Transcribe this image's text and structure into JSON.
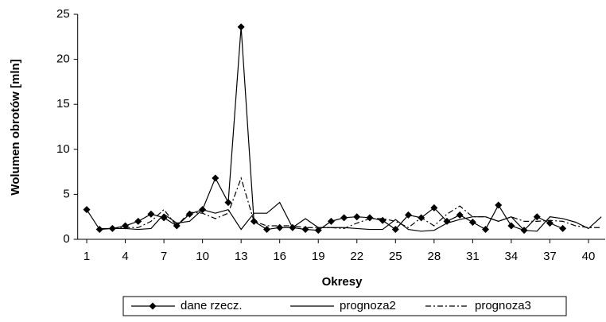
{
  "chart_data": {
    "type": "line",
    "x": [
      1,
      2,
      3,
      4,
      5,
      6,
      7,
      8,
      9,
      10,
      11,
      12,
      13,
      14,
      15,
      16,
      17,
      18,
      19,
      20,
      21,
      22,
      23,
      24,
      25,
      26,
      27,
      28,
      29,
      30,
      31,
      32,
      33,
      34,
      35,
      36,
      37,
      38,
      39,
      40,
      41
    ],
    "xlabel": "Okresy",
    "ylabel": "Wolumen obrotów [mln]",
    "xlim": [
      0.3,
      41.3
    ],
    "xticks": [
      1,
      4,
      7,
      10,
      13,
      16,
      19,
      22,
      25,
      28,
      31,
      34,
      37,
      40
    ],
    "ylim": [
      0,
      25
    ],
    "yticks": [
      0,
      5,
      10,
      15,
      20,
      25
    ],
    "grid": false,
    "legend": "bottom",
    "series": [
      {
        "name": "dane rzecz.",
        "color": "#000000",
        "dash": "solid",
        "marker": "diamond",
        "values": [
          3.3,
          1.1,
          1.2,
          1.5,
          2.0,
          2.8,
          2.4,
          1.5,
          2.8,
          3.3,
          6.8,
          4.1,
          23.6,
          2.0,
          1.1,
          1.3,
          1.3,
          1.1,
          1.0,
          2.0,
          2.4,
          2.5,
          2.4,
          2.1,
          1.1,
          2.7,
          2.4,
          3.5,
          2.0,
          2.7,
          1.9,
          1.1,
          3.8,
          1.5,
          1.0,
          2.5,
          1.8,
          1.2,
          null,
          null,
          null
        ]
      },
      {
        "name": "prognoza2",
        "color": "#000000",
        "dash": "solid",
        "marker": "none",
        "values": [
          null,
          1.2,
          1.2,
          1.2,
          1.1,
          1.2,
          2.8,
          1.8,
          2.0,
          3.3,
          2.9,
          3.3,
          1.1,
          2.9,
          2.9,
          4.1,
          1.3,
          2.3,
          1.3,
          1.3,
          1.3,
          1.2,
          1.1,
          1.1,
          2.2,
          1.1,
          0.9,
          1.0,
          1.8,
          2.2,
          2.5,
          2.5,
          2.0,
          2.5,
          1.0,
          0.9,
          2.5,
          2.3,
          1.9,
          1.2,
          2.5
        ]
      },
      {
        "name": "prognoza3",
        "color": "#000000",
        "dash": "dashdot",
        "marker": "none",
        "values": [
          null,
          null,
          1.2,
          1.3,
          1.3,
          2.0,
          3.3,
          1.5,
          3.0,
          2.9,
          2.3,
          2.9,
          6.8,
          2.0,
          1.5,
          1.5,
          1.5,
          1.3,
          1.3,
          1.3,
          1.2,
          1.8,
          2.3,
          2.3,
          2.0,
          1.3,
          2.4,
          1.5,
          2.8,
          3.7,
          2.5,
          2.5,
          2.0,
          2.5,
          2.0,
          2.0,
          2.1,
          2.0,
          1.5,
          1.3,
          1.3
        ]
      }
    ]
  }
}
